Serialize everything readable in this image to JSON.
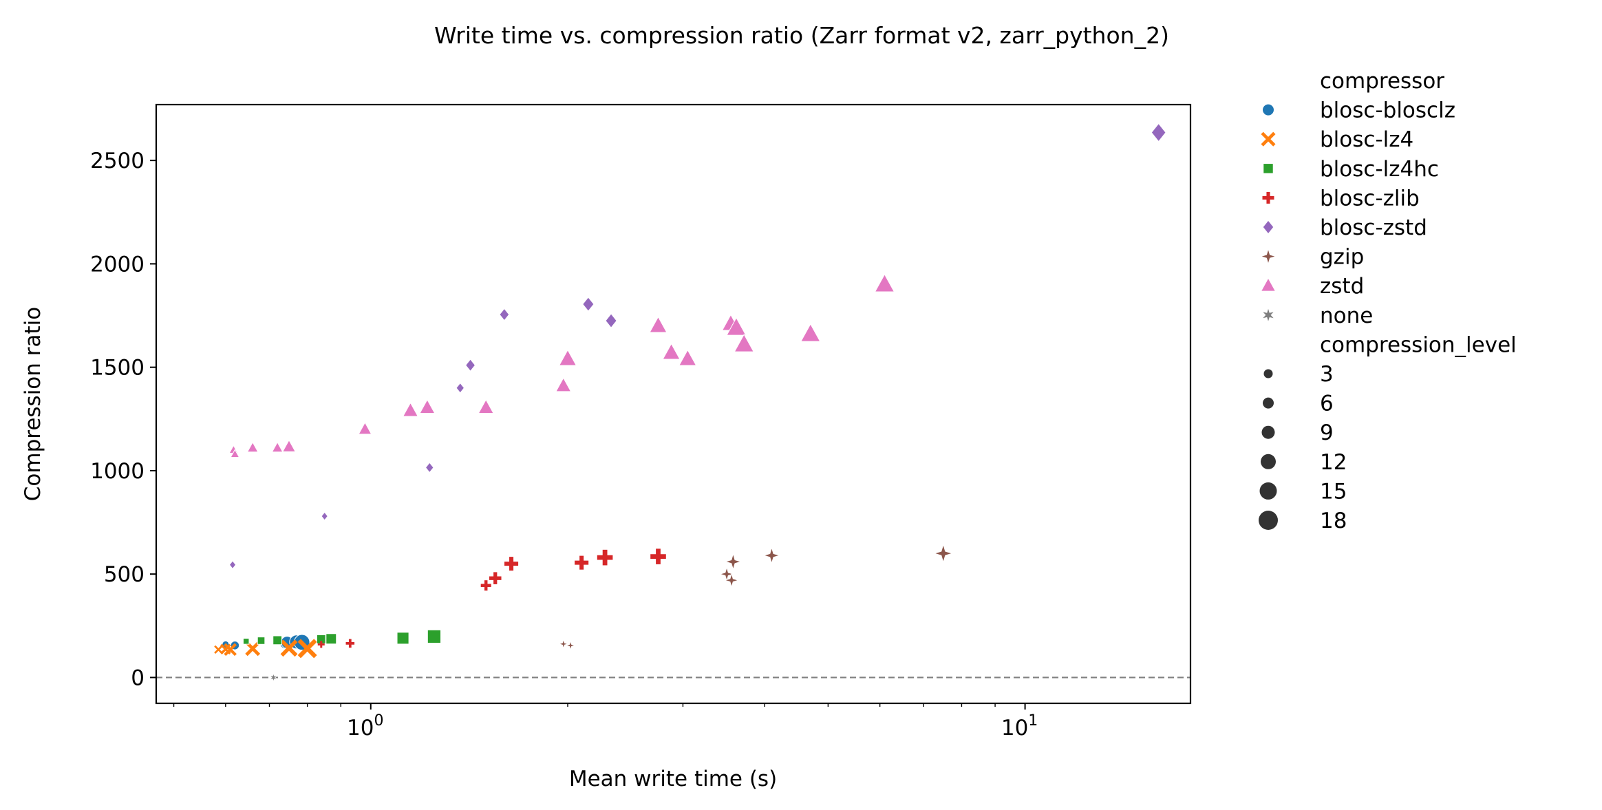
{
  "chart_data": {
    "type": "scatter",
    "title": "Write time vs. compression ratio (Zarr format v2, zarr_python_2)",
    "xlabel": "Mean write time (s)",
    "ylabel": "Compression ratio",
    "xscale": "log",
    "xlim": [
      0.47,
      17.9
    ],
    "ylim": [
      -125,
      2770
    ],
    "y_ticks": [
      0,
      500,
      1000,
      1500,
      2000,
      2500
    ],
    "y_tick_labels": [
      "0",
      "500",
      "1000",
      "1500",
      "2000",
      "2500"
    ],
    "x_major_ticks": [
      1,
      10
    ],
    "x_tick_labels": [
      "10",
      "10"
    ],
    "x_tick_exponents": [
      "0",
      "1"
    ],
    "grid": false,
    "reference_line": {
      "y": 0,
      "style": "dashed",
      "color": "#808080"
    },
    "legend": {
      "placement": "outside-right",
      "hue_title": "compressor",
      "size_title": "compression_level",
      "sizes": [
        3,
        6,
        9,
        12,
        15,
        18
      ]
    },
    "series": [
      {
        "name": "blosc-blosclz",
        "color": "#1f77b4",
        "marker": "circle",
        "points": [
          [
            0.6,
            160,
            3
          ],
          [
            0.62,
            155,
            6
          ],
          [
            0.74,
            165,
            9
          ],
          [
            0.745,
            170,
            12
          ],
          [
            0.77,
            172,
            15
          ],
          [
            0.785,
            170,
            18
          ]
        ]
      },
      {
        "name": "blosc-lz4",
        "color": "#ff7f0e",
        "marker": "x",
        "points": [
          [
            0.585,
            135,
            3
          ],
          [
            0.6,
            137,
            6
          ],
          [
            0.61,
            135,
            9
          ],
          [
            0.66,
            140,
            12
          ],
          [
            0.75,
            142,
            15
          ],
          [
            0.8,
            140,
            18
          ]
        ]
      },
      {
        "name": "blosc-lz4hc",
        "color": "#2ca02c",
        "marker": "square",
        "points": [
          [
            0.645,
            175,
            3
          ],
          [
            0.68,
            178,
            6
          ],
          [
            0.72,
            180,
            9
          ],
          [
            0.84,
            185,
            9
          ],
          [
            0.87,
            187,
            12
          ],
          [
            1.12,
            190,
            15
          ],
          [
            1.25,
            198,
            18
          ]
        ]
      },
      {
        "name": "blosc-zlib",
        "color": "#d62728",
        "marker": "plus",
        "points": [
          [
            0.84,
            160,
            3
          ],
          [
            0.93,
            165,
            6
          ],
          [
            1.5,
            445,
            9
          ],
          [
            1.55,
            480,
            12
          ],
          [
            1.64,
            550,
            15
          ],
          [
            2.1,
            555,
            15
          ],
          [
            2.28,
            580,
            18
          ],
          [
            2.75,
            585,
            18
          ]
        ]
      },
      {
        "name": "blosc-zstd",
        "color": "#9467bd",
        "marker": "diamond",
        "points": [
          [
            0.615,
            545,
            3
          ],
          [
            0.85,
            780,
            3
          ],
          [
            1.23,
            1015,
            6
          ],
          [
            1.37,
            1400,
            6
          ],
          [
            1.42,
            1510,
            9
          ],
          [
            1.6,
            1755,
            9
          ],
          [
            2.15,
            1805,
            12
          ],
          [
            2.33,
            1725,
            12
          ],
          [
            16.0,
            2635,
            18
          ]
        ]
      },
      {
        "name": "gzip",
        "color": "#8c564b",
        "marker": "star4",
        "points": [
          [
            1.97,
            162,
            3
          ],
          [
            2.02,
            155,
            3
          ],
          [
            3.5,
            500,
            9
          ],
          [
            3.56,
            470,
            9
          ],
          [
            3.58,
            560,
            12
          ],
          [
            4.1,
            590,
            12
          ],
          [
            7.5,
            600,
            15
          ]
        ]
      },
      {
        "name": "zstd",
        "color": "#e377c2",
        "marker": "triangle",
        "points": [
          [
            0.617,
            1100,
            3
          ],
          [
            0.62,
            1080,
            3
          ],
          [
            0.66,
            1110,
            6
          ],
          [
            0.72,
            1110,
            6
          ],
          [
            0.75,
            1115,
            9
          ],
          [
            0.98,
            1200,
            9
          ],
          [
            1.15,
            1290,
            12
          ],
          [
            1.22,
            1305,
            12
          ],
          [
            1.5,
            1305,
            12
          ],
          [
            1.97,
            1410,
            12
          ],
          [
            2.0,
            1540,
            15
          ],
          [
            2.75,
            1700,
            15
          ],
          [
            2.88,
            1570,
            15
          ],
          [
            3.05,
            1540,
            15
          ],
          [
            3.55,
            1710,
            15
          ],
          [
            3.62,
            1690,
            18
          ],
          [
            3.72,
            1610,
            18
          ],
          [
            4.7,
            1660,
            18
          ],
          [
            6.1,
            1900,
            18
          ]
        ]
      },
      {
        "name": "none",
        "color": "#7f7f7f",
        "marker": "star6",
        "points": [
          [
            0.71,
            0,
            3
          ]
        ]
      }
    ]
  }
}
